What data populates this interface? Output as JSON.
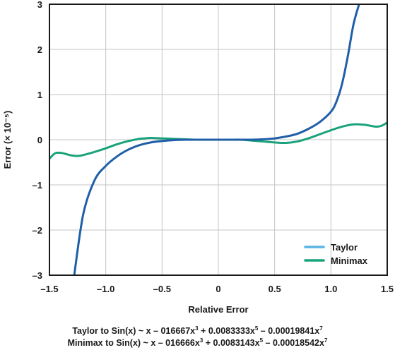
{
  "chart_data": {
    "type": "line",
    "title": "",
    "xlabel": "Relative Error",
    "ylabel": "Error (× 10⁻⁵)",
    "xlim": [
      -1.5,
      1.5
    ],
    "ylim": [
      -3,
      3
    ],
    "xticks": [
      -1.5,
      -1.0,
      -0.5,
      0,
      0.5,
      1.0,
      1.5
    ],
    "xtick_labels": [
      "–1.5",
      "–1.0",
      "–0.5",
      "0",
      "0.5",
      "1.0",
      "1.5"
    ],
    "yticks": [
      -3,
      -2,
      -1,
      0,
      1,
      2,
      3
    ],
    "ytick_labels": [
      "–3",
      "–2",
      "–1",
      "0",
      "1",
      "2",
      "3"
    ],
    "grid": true,
    "legend_position": "bottom-right",
    "series": [
      {
        "name": "Taylor",
        "color": "#5ab4e5",
        "draw_color": "#1f5fa8",
        "x": [
          -1.28,
          -1.2,
          -1.1,
          -1.0,
          -0.9,
          -0.8,
          -0.7,
          -0.6,
          -0.5,
          -0.4,
          -0.3,
          -0.2,
          -0.1,
          0,
          0.1,
          0.2,
          0.3,
          0.4,
          0.5,
          0.6,
          0.7,
          0.8,
          0.9,
          1.0,
          1.05,
          1.1,
          1.15,
          1.2,
          1.25
        ],
        "y": [
          -3.0,
          -1.65,
          -0.9,
          -0.58,
          -0.37,
          -0.22,
          -0.12,
          -0.06,
          -0.03,
          -0.01,
          0.0,
          0.0,
          0.0,
          0.0,
          0.0,
          0.0,
          0.0,
          0.01,
          0.03,
          0.07,
          0.13,
          0.24,
          0.39,
          0.62,
          0.85,
          1.25,
          1.85,
          2.55,
          3.0
        ]
      },
      {
        "name": "Minimax",
        "color": "#1aa37a",
        "x": [
          -1.5,
          -1.45,
          -1.4,
          -1.35,
          -1.3,
          -1.25,
          -1.2,
          -1.1,
          -1.0,
          -0.9,
          -0.8,
          -0.7,
          -0.65,
          -0.6,
          -0.5,
          -0.4,
          -0.3,
          -0.2,
          -0.1,
          0,
          0.1,
          0.2,
          0.3,
          0.4,
          0.5,
          0.6,
          0.7,
          0.8,
          0.9,
          1.0,
          1.1,
          1.2,
          1.3,
          1.4,
          1.45,
          1.5
        ],
        "y": [
          -0.42,
          -0.3,
          -0.29,
          -0.32,
          -0.35,
          -0.36,
          -0.34,
          -0.27,
          -0.19,
          -0.1,
          -0.03,
          0.02,
          0.03,
          0.04,
          0.03,
          0.02,
          0.01,
          0.0,
          0.0,
          0.0,
          0.0,
          0.0,
          -0.02,
          -0.04,
          -0.06,
          -0.07,
          -0.04,
          0.03,
          0.12,
          0.21,
          0.29,
          0.34,
          0.33,
          0.29,
          0.31,
          0.38
        ]
      }
    ]
  },
  "captions": {
    "taylor_pre": "Taylor to Sin(x) ~ x – 016667x",
    "taylor_e1": "3",
    "taylor_mid": " + 0.0083333x",
    "taylor_e2": "5",
    "taylor_post": " – 0.00019841x",
    "taylor_e3": "7",
    "minimax_pre": "Minimax to Sin(x) ~ x – 016666x",
    "minimax_e1": "3",
    "minimax_mid": " + 0.0083143x",
    "minimax_e2": "5",
    "minimax_post": " – 0.00018542x",
    "minimax_e3": "7"
  }
}
